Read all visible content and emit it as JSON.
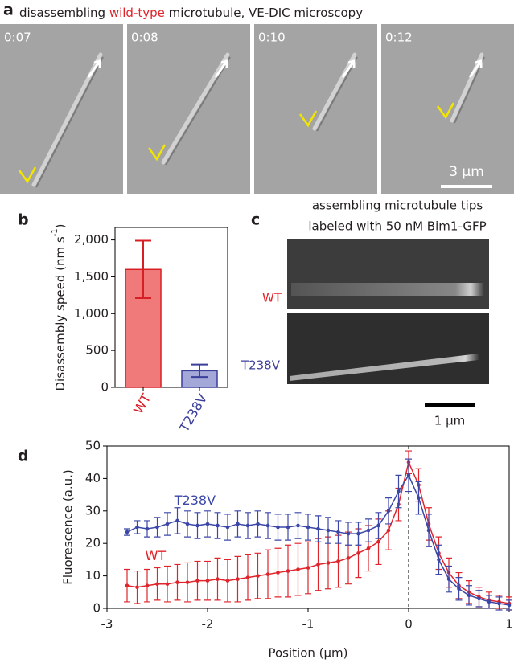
{
  "figure": {
    "panel_labels": [
      "a",
      "b",
      "c",
      "d"
    ]
  },
  "panel_a": {
    "title_parts": [
      "disassembling ",
      "wild-type",
      " microtubule, VE-DIC microscopy"
    ],
    "timestamps": [
      "0:07",
      "0:08",
      "0:10",
      "0:12"
    ],
    "scale_bar": "3 μm"
  },
  "panel_c": {
    "title_lines": [
      "assembling microtubule tips",
      "labeled with 50 nM Bim1-GFP"
    ],
    "row_labels": [
      "WT",
      "T238V"
    ],
    "scale_bar": "1 μm"
  },
  "chart_data": [
    {
      "type": "bar",
      "categories": [
        "WT",
        "T238V"
      ],
      "values": [
        1600,
        225
      ],
      "errors": [
        390,
        85
      ],
      "colors": [
        "#f07a7a",
        "#a3a8d8"
      ],
      "edge_colors": [
        "#d71f26",
        "#3b3f99"
      ],
      "ylim": [
        0,
        2170
      ],
      "yticks": [
        0,
        500,
        {
          "value": 1000,
          "label": "1,000"
        },
        {
          "value": 1500,
          "label": "1,500"
        },
        {
          "value": 2000,
          "label": "2,000"
        }
      ],
      "ylabel": "Disassembly speed (nm s",
      "ylabel_superscript": "-1",
      "ylabel_end": ")"
    },
    {
      "type": "line",
      "xlabel": "Position (μm)",
      "ylabel": "Fluorescence (a.u.)",
      "xlim": [
        -3,
        1
      ],
      "ylim": [
        0,
        50
      ],
      "xticks": [
        -3,
        -2,
        -1,
        0,
        1
      ],
      "yticks": [
        0,
        10,
        20,
        30,
        40,
        50
      ],
      "vline_x": 0,
      "x": [
        -2.8,
        -2.7,
        -2.6,
        -2.5,
        -2.4,
        -2.3,
        -2.2,
        -2.1,
        -2.0,
        -1.9,
        -1.8,
        -1.7,
        -1.6,
        -1.5,
        -1.4,
        -1.3,
        -1.2,
        -1.1,
        -1.0,
        -0.9,
        -0.8,
        -0.7,
        -0.6,
        -0.5,
        -0.4,
        -0.3,
        -0.2,
        -0.1,
        0,
        0.1,
        0.2,
        0.3,
        0.4,
        0.5,
        0.6,
        0.7,
        0.8,
        0.9,
        1.0
      ],
      "series": [
        {
          "name": "WT",
          "color": "#e0242b",
          "values": [
            7,
            6.5,
            7,
            7.5,
            7.5,
            8,
            8,
            8.5,
            8.5,
            9,
            8.5,
            9,
            9.5,
            10,
            10.5,
            11,
            11.5,
            12,
            12.5,
            13.5,
            14,
            14.5,
            15.5,
            17,
            18.5,
            20.5,
            24,
            32,
            45,
            38,
            26,
            17,
            11,
            7,
            5,
            3.5,
            2.5,
            2,
            1.5
          ],
          "errors": [
            5,
            5,
            5,
            5,
            5.5,
            5.5,
            6,
            6,
            6,
            6.5,
            6.5,
            7,
            7,
            7,
            7.5,
            7.5,
            8,
            8,
            8,
            8,
            8,
            8,
            8,
            7.5,
            7,
            7,
            6,
            5,
            3.5,
            5,
            5,
            5,
            4.5,
            4,
            3.5,
            3,
            2.5,
            2,
            2
          ]
        },
        {
          "name": "T238V",
          "color": "#3b47a8",
          "values": [
            23.5,
            25,
            24.5,
            25,
            26,
            27,
            26,
            25.5,
            26,
            25.5,
            25,
            26,
            25.5,
            26,
            25.5,
            25,
            25,
            25.5,
            25,
            24.5,
            24,
            23.5,
            23,
            23,
            24,
            25.5,
            30,
            36,
            41,
            34,
            24,
            15,
            9,
            6,
            4,
            3,
            2,
            1.5,
            1
          ],
          "errors": [
            1,
            2,
            2.5,
            3,
            3.5,
            4,
            4,
            4,
            4,
            4,
            4,
            4,
            4,
            4,
            4,
            4,
            4,
            4,
            4,
            4,
            4,
            3.5,
            3.5,
            3.5,
            3.5,
            4,
            4,
            5,
            5,
            5,
            5,
            4.5,
            4,
            3.5,
            3,
            2.5,
            2,
            2,
            1.5
          ]
        }
      ]
    }
  ]
}
